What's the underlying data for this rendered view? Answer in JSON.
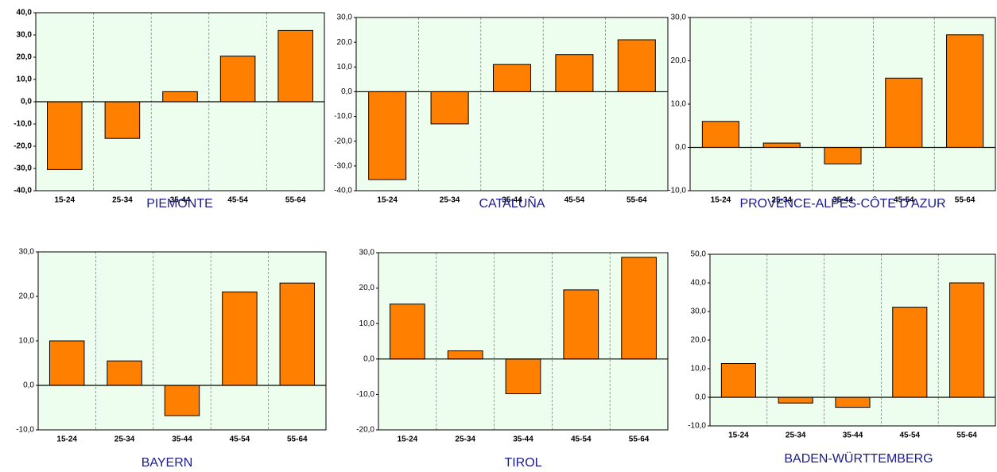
{
  "chart_data": [
    {
      "type": "bar",
      "title": "PIEMONTE",
      "categories": [
        "15-24",
        "25-34",
        "35-44",
        "45-54",
        "55-64"
      ],
      "values": [
        -30.5,
        -16.5,
        4.5,
        20.5,
        32
      ],
      "color": "#ff8000",
      "ylim": [
        -40,
        40
      ],
      "yticks": [
        {
          "value": -40,
          "label": "-40,0"
        },
        {
          "value": -30,
          "label": "-30,0"
        },
        {
          "value": -20,
          "label": "-20,0"
        },
        {
          "value": -10,
          "label": "-10,0"
        },
        {
          "value": 0,
          "label": "0,0"
        },
        {
          "value": 10,
          "label": "10,0"
        },
        {
          "value": 20,
          "label": "20,0"
        },
        {
          "value": 30,
          "label": "30,0"
        },
        {
          "value": 40,
          "label": "40,0"
        }
      ]
    },
    {
      "type": "bar",
      "title": "CATALUÑA",
      "categories": [
        "15-24",
        "25-34",
        "35-44",
        "45-54",
        "55-64"
      ],
      "values": [
        -35.5,
        -13,
        11,
        15,
        21
      ],
      "color": "#ff8000",
      "ylim": [
        -40,
        30
      ],
      "yticks": [
        {
          "value": -40,
          "label": "-40,0"
        },
        {
          "value": -30,
          "label": "-30,0"
        },
        {
          "value": -20,
          "label": "-20,0"
        },
        {
          "value": -10,
          "label": "-10,0"
        },
        {
          "value": 0,
          "label": "0,0"
        },
        {
          "value": 10,
          "label": "10,0"
        },
        {
          "value": 20,
          "label": "20,0"
        },
        {
          "value": 30,
          "label": "30,0"
        }
      ]
    },
    {
      "type": "bar",
      "title": "PROVENCE-ALPES-CÔTE D'AZUR",
      "categories": [
        "15-24",
        "25-34",
        "35-44",
        "45-54",
        "55-64"
      ],
      "values": [
        6,
        1,
        -3.8,
        16,
        26
      ],
      "color": "#ff8000",
      "ylim": [
        -10,
        30
      ],
      "yticks": [
        {
          "value": -10,
          "label": "-10,0"
        },
        {
          "value": 0,
          "label": "0,0"
        },
        {
          "value": 10,
          "label": "10,0"
        },
        {
          "value": 20,
          "label": "20,0"
        },
        {
          "value": 30,
          "label": "30,0"
        }
      ]
    },
    {
      "type": "bar",
      "title": "BAYERN",
      "categories": [
        "15-24",
        "25-34",
        "35-44",
        "45-54",
        "55-64"
      ],
      "values": [
        10,
        5.5,
        -6.8,
        21,
        23
      ],
      "color": "#ff8000",
      "ylim": [
        -10,
        30
      ],
      "yticks": [
        {
          "value": -10,
          "label": "-10,0"
        },
        {
          "value": 0,
          "label": "0,0"
        },
        {
          "value": 10,
          "label": "10,0"
        },
        {
          "value": 20,
          "label": "20,0"
        },
        {
          "value": 30,
          "label": "30,0"
        }
      ]
    },
    {
      "type": "bar",
      "title": "TIROL",
      "categories": [
        "15-24",
        "25-34",
        "35-44",
        "45-54",
        "55-64"
      ],
      "values": [
        15.5,
        2.3,
        -9.8,
        19.5,
        28.7
      ],
      "color": "#ff8000",
      "ylim": [
        -20,
        30
      ],
      "yticks": [
        {
          "value": -20,
          "label": "-20,0"
        },
        {
          "value": -10,
          "label": "-10,0"
        },
        {
          "value": 0,
          "label": "0,0"
        },
        {
          "value": 10,
          "label": "10,0"
        },
        {
          "value": 20,
          "label": "20,0"
        },
        {
          "value": 30,
          "label": "30,0"
        }
      ]
    },
    {
      "type": "bar",
      "title": "BADEN-WÜRTTEMBERG",
      "categories": [
        "15-24",
        "25-34",
        "35-44",
        "45-54",
        "55-64"
      ],
      "values": [
        11.8,
        -2,
        -3.5,
        31.5,
        40
      ],
      "color": "#ff8000",
      "ylim": [
        -10,
        50
      ],
      "yticks": [
        {
          "value": -10,
          "label": "-10,0"
        },
        {
          "value": 0,
          "label": "0,0"
        },
        {
          "value": 10,
          "label": "10,0"
        },
        {
          "value": 20,
          "label": "20,0"
        },
        {
          "value": 30,
          "label": "30,0"
        },
        {
          "value": 40,
          "label": "40,0"
        },
        {
          "value": 50,
          "label": "50,0"
        }
      ]
    }
  ]
}
